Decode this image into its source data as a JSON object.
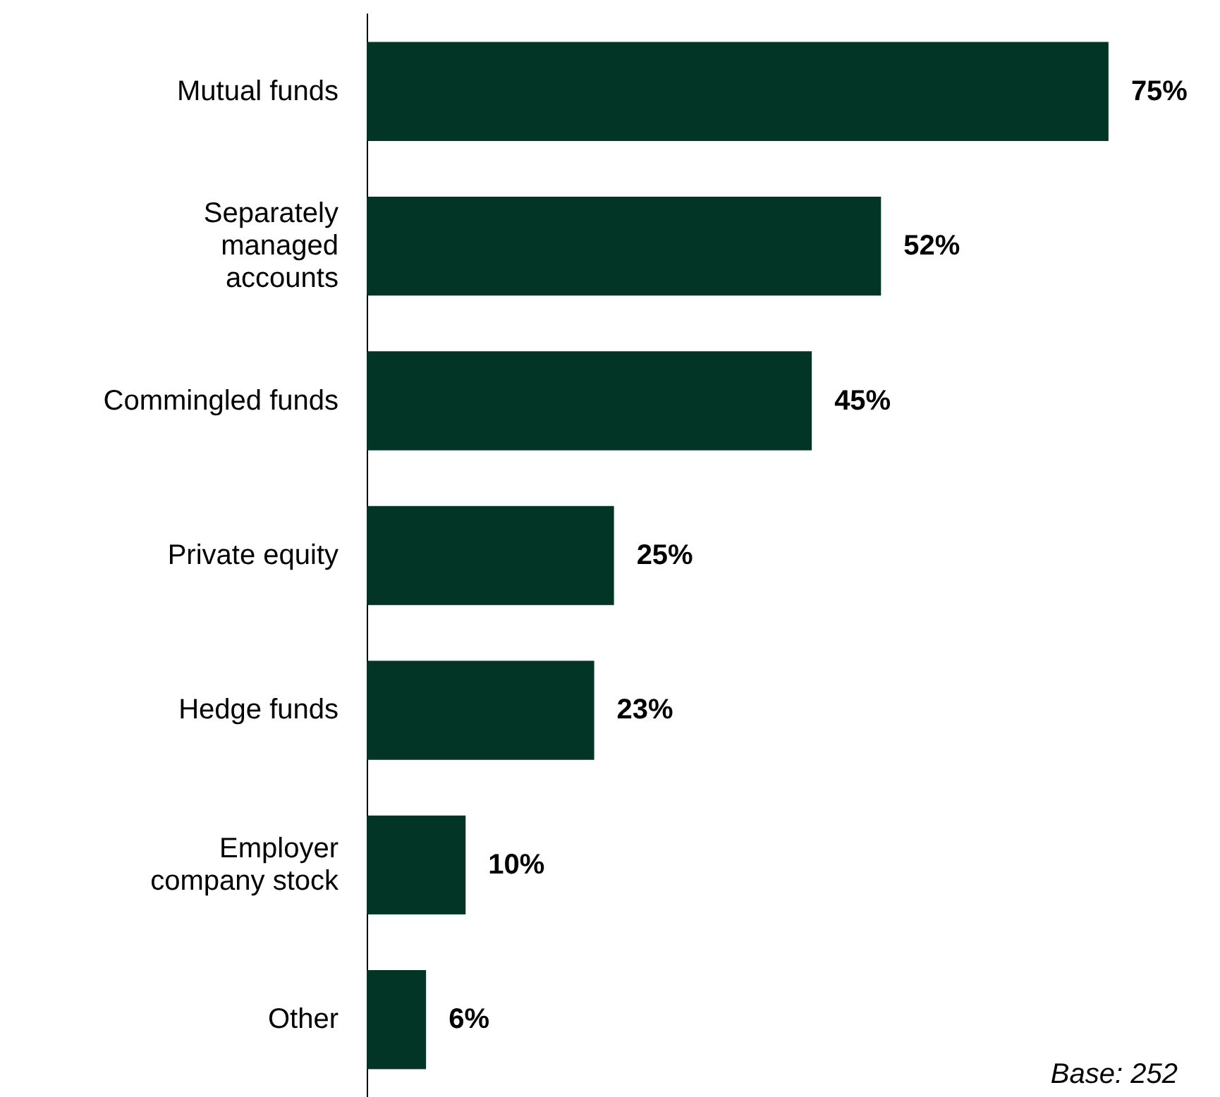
{
  "chart_data": {
    "type": "bar",
    "orientation": "horizontal",
    "categories": [
      "Mutual funds",
      "Separately\nmanaged\naccounts",
      "Commingled funds",
      "Private equity",
      "Hedge funds",
      "Employer\ncompany stock",
      "Other"
    ],
    "values": [
      75,
      52,
      45,
      25,
      23,
      10,
      6
    ],
    "value_labels": [
      "75%",
      "52%",
      "45%",
      "25%",
      "23%",
      "10%",
      "6%"
    ],
    "color": "#033526",
    "annotations": [
      "Base: 252"
    ]
  }
}
